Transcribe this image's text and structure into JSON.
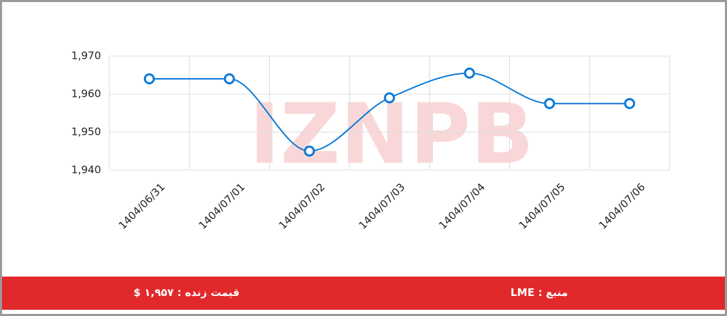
{
  "chart_data": {
    "type": "line",
    "categories": [
      "1404/06/31",
      "1404/07/01",
      "1404/07/02",
      "1404/07/03",
      "1404/07/04",
      "1404/07/05",
      "1404/07/06"
    ],
    "series": [
      {
        "color": "#0a7ad6",
        "values": [
          1964,
          1964,
          1945,
          1959,
          1965.5,
          1957.5,
          1957.5
        ]
      }
    ],
    "ylim": [
      1940,
      1970
    ],
    "yticks": [
      {
        "value": 1940,
        "label": "1,940"
      },
      {
        "value": 1950,
        "label": "1,950"
      },
      {
        "value": 1960,
        "label": "1,960"
      },
      {
        "value": 1970,
        "label": "1,970"
      }
    ],
    "grid": true,
    "watermark": "IZNPB"
  },
  "footer": {
    "price": "قیمت زنده : ۱,۹۵۷ $",
    "source": "منبع : LME"
  }
}
